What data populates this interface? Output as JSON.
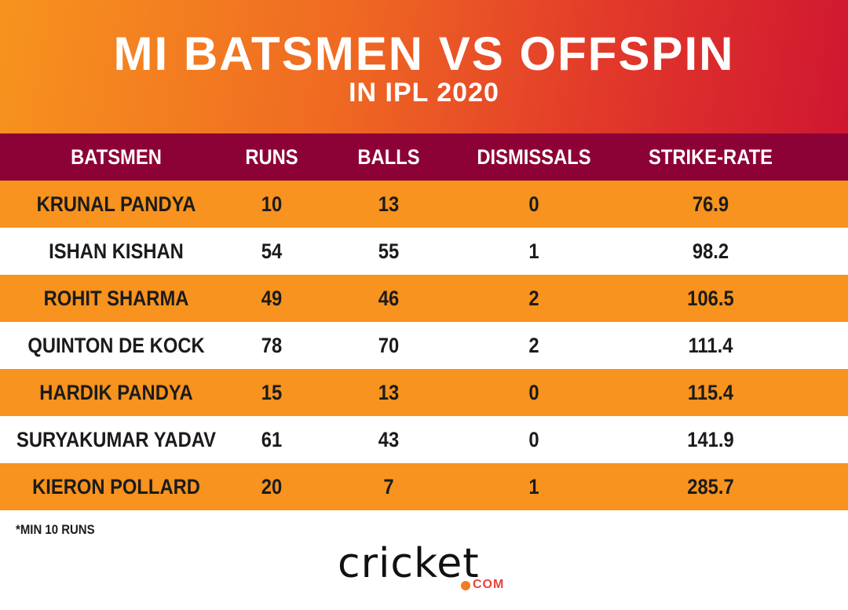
{
  "title": "MI BATSMEN VS OFFSPIN",
  "subtitle": "IN IPL 2020",
  "footnote": "*MIN 10 RUNS",
  "logo": {
    "word": "cricket",
    "suffix": "COM"
  },
  "colors": {
    "header_gradient_start": "#f7931e",
    "header_gradient_end": "#cf1630",
    "table_header": "#8c0236",
    "odd_row": "#f7931e",
    "even_row": "#ffffff"
  },
  "chart_data": {
    "type": "table",
    "title": "MI BATSMEN VS OFFSPIN",
    "subtitle": "IN IPL 2020",
    "columns": [
      "BATSMEN",
      "RUNS",
      "BALLS",
      "DISMISSALS",
      "STRIKE-RATE"
    ],
    "rows": [
      [
        "KRUNAL PANDYA",
        "10",
        "13",
        "0",
        "76.9"
      ],
      [
        "ISHAN KISHAN",
        "54",
        "55",
        "1",
        "98.2"
      ],
      [
        "ROHIT SHARMA",
        "49",
        "46",
        "2",
        "106.5"
      ],
      [
        "QUINTON DE KOCK",
        "78",
        "70",
        "2",
        "111.4"
      ],
      [
        "HARDIK PANDYA",
        "15",
        "13",
        "0",
        "115.4"
      ],
      [
        "SURYAKUMAR YADAV",
        "61",
        "43",
        "0",
        "141.9"
      ],
      [
        "KIERON POLLARD",
        "20",
        "7",
        "1",
        "285.7"
      ]
    ]
  }
}
